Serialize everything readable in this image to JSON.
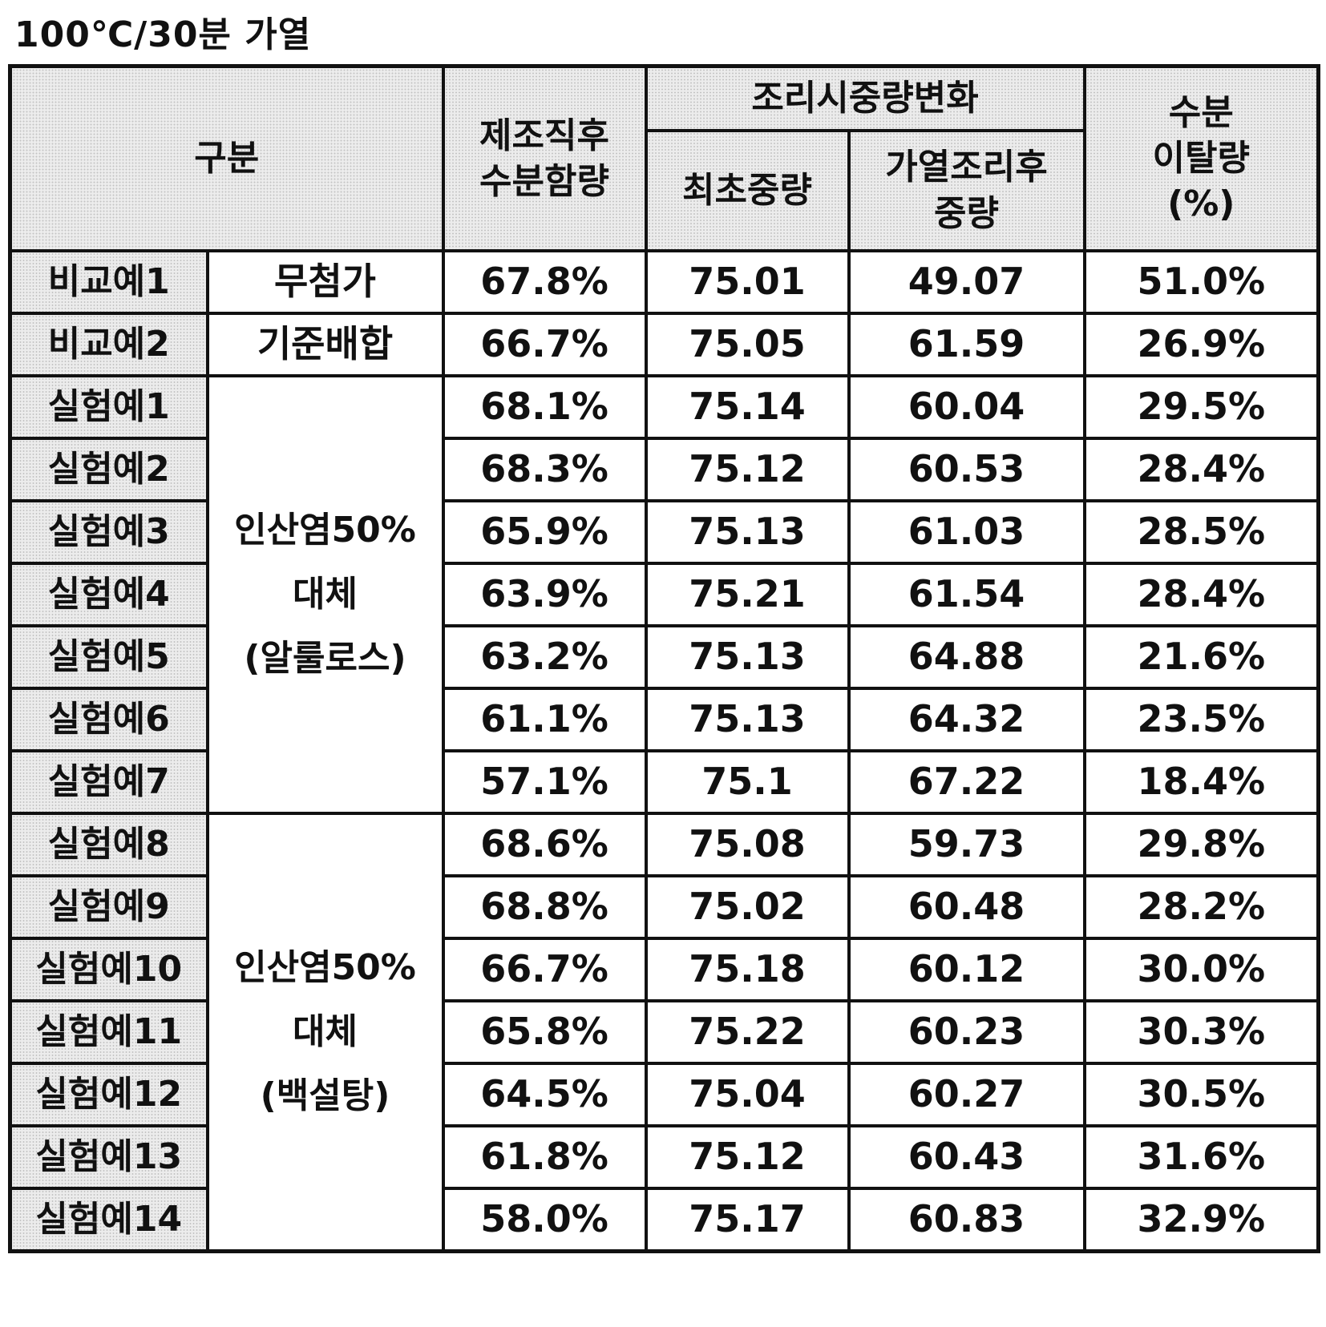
{
  "title": "100℃/30분 가열",
  "header": {
    "category": "구분",
    "moisture_after_prep_line1": "제조직후",
    "moisture_after_prep_line2": "수분함량",
    "weight_change_group": "조리시중량변화",
    "initial_weight": "최초중량",
    "after_cook_weight_line1": "가열조리후",
    "after_cook_weight_line2": "중량",
    "moisture_loss_line1": "수분",
    "moisture_loss_line2": "이탈량",
    "moisture_loss_line3": "(%)"
  },
  "groups": {
    "none": "무첨가",
    "standard": "기준배합",
    "allulose_line1": "인산염50%",
    "allulose_line2": "대체",
    "allulose_line3": "(알룰로스)",
    "sugar_line1": "인산염50%",
    "sugar_line2": "대체",
    "sugar_line3": "(백설탕)"
  },
  "rows": [
    {
      "label": "비교예1",
      "moisture": "67.8%",
      "initial": "75.01",
      "after": "49.07",
      "loss": "51.0%"
    },
    {
      "label": "비교예2",
      "moisture": "66.7%",
      "initial": "75.05",
      "after": "61.59",
      "loss": "26.9%"
    },
    {
      "label": "실험예1",
      "moisture": "68.1%",
      "initial": "75.14",
      "after": "60.04",
      "loss": "29.5%"
    },
    {
      "label": "실험예2",
      "moisture": "68.3%",
      "initial": "75.12",
      "after": "60.53",
      "loss": "28.4%"
    },
    {
      "label": "실험예3",
      "moisture": "65.9%",
      "initial": "75.13",
      "after": "61.03",
      "loss": "28.5%"
    },
    {
      "label": "실험예4",
      "moisture": "63.9%",
      "initial": "75.21",
      "after": "61.54",
      "loss": "28.4%"
    },
    {
      "label": "실험예5",
      "moisture": "63.2%",
      "initial": "75.13",
      "after": "64.88",
      "loss": "21.6%"
    },
    {
      "label": "실험예6",
      "moisture": "61.1%",
      "initial": "75.13",
      "after": "64.32",
      "loss": "23.5%"
    },
    {
      "label": "실험예7",
      "moisture": "57.1%",
      "initial": "75.1",
      "after": "67.22",
      "loss": "18.4%"
    },
    {
      "label": "실험예8",
      "moisture": "68.6%",
      "initial": "75.08",
      "after": "59.73",
      "loss": "29.8%"
    },
    {
      "label": "실험예9",
      "moisture": "68.8%",
      "initial": "75.02",
      "after": "60.48",
      "loss": "28.2%"
    },
    {
      "label": "실험예10",
      "moisture": "66.7%",
      "initial": "75.18",
      "after": "60.12",
      "loss": "30.0%"
    },
    {
      "label": "실험예11",
      "moisture": "65.8%",
      "initial": "75.22",
      "after": "60.23",
      "loss": "30.3%"
    },
    {
      "label": "실험예12",
      "moisture": "64.5%",
      "initial": "75.04",
      "after": "60.27",
      "loss": "30.5%"
    },
    {
      "label": "실험예13",
      "moisture": "61.8%",
      "initial": "75.12",
      "after": "60.43",
      "loss": "31.6%"
    },
    {
      "label": "실험예14",
      "moisture": "58.0%",
      "initial": "75.17",
      "after": "60.83",
      "loss": "32.9%"
    }
  ]
}
